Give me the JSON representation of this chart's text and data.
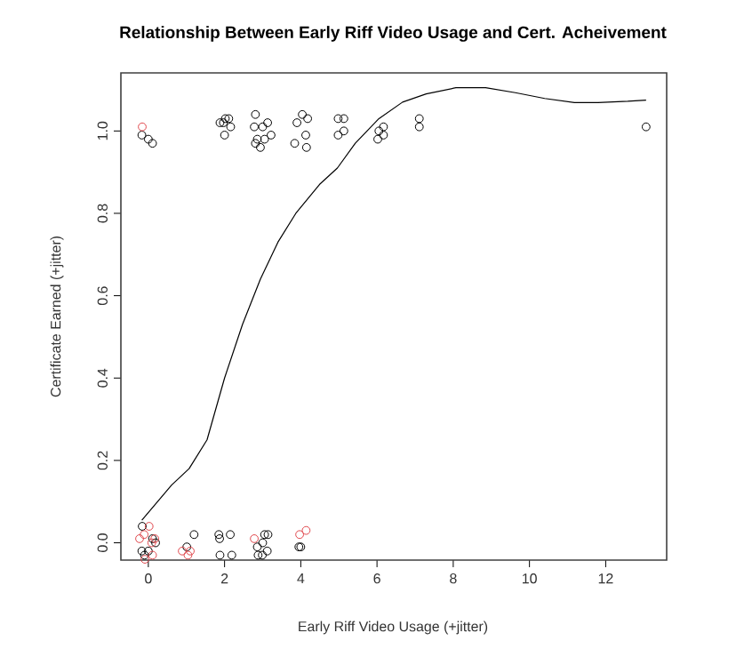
{
  "chart_data": {
    "type": "scatter",
    "title": "Relationship Between Early Riff Video Usage and Cert. Acheivement",
    "xlabel": "Early Riff Video Usage (+jitter)",
    "ylabel": "Certificate Earned (+jitter)",
    "xlim": [
      -0.72,
      13.6
    ],
    "ylim": [
      -0.042,
      1.141
    ],
    "xticks": [
      0,
      2,
      4,
      6,
      8,
      10,
      12
    ],
    "yticks": [
      {
        "value": 0,
        "label": "0.0"
      },
      {
        "value": 0.2,
        "label": "0.2"
      },
      {
        "value": 0.4,
        "label": "0.4"
      },
      {
        "value": 0.6,
        "label": "0.6"
      },
      {
        "value": 0.8,
        "label": "0.8"
      },
      {
        "value": 1,
        "label": "1.0"
      }
    ],
    "marker": "circle",
    "series": [
      {
        "color": "#000000",
        "x": [
          -0.17,
          0,
          0.11,
          1.88,
          2.02,
          2.11,
          1.97,
          2.16,
          2.0,
          2.81,
          2.78,
          3.0,
          3.13,
          3.22,
          2.81,
          2.94,
          3.05,
          2.86,
          3.84,
          3.9,
          4.04,
          4.18,
          4.13,
          4.15,
          4.98,
          5.13,
          4.98,
          5.13,
          6.02,
          6.05,
          6.17,
          6.17,
          7.11,
          7.11,
          13.06,
          -0.16,
          -0.17,
          0,
          0.11,
          0.19,
          -0.1,
          1.01,
          1.2,
          1.85,
          1.87,
          1.88,
          2.15,
          2.19,
          2.86,
          2.88,
          2.99,
          3.05,
          3.14,
          3.12,
          3.0,
          3.95,
          4.0
        ],
        "values": [
          0.99,
          0.98,
          0.97,
          1.02,
          1.03,
          1.03,
          1.02,
          1.01,
          0.99,
          1.04,
          1.01,
          1.01,
          1.02,
          0.99,
          0.97,
          0.96,
          0.98,
          0.98,
          0.97,
          1.02,
          1.04,
          1.03,
          0.99,
          0.96,
          1.03,
          1.03,
          0.99,
          1.0,
          0.98,
          1.0,
          1.01,
          0.99,
          1.03,
          1.01,
          1.01,
          0.04,
          -0.02,
          -0.02,
          0.01,
          0.0,
          -0.03,
          -0.01,
          0.02,
          0.02,
          0.01,
          -0.03,
          0.02,
          -0.03,
          -0.01,
          -0.03,
          -0.03,
          0.02,
          0.02,
          -0.02,
          0.0,
          -0.01,
          -0.01
        ]
      },
      {
        "color": "#e0474c",
        "x": [
          -0.16,
          0.02,
          -0.23,
          -0.11,
          0.09,
          0.17,
          -0.09,
          0.11,
          0.89,
          1.04,
          1.1,
          2.78,
          3.97,
          4.14
        ],
        "values": [
          1.01,
          0.04,
          0.01,
          0.02,
          0.0,
          0.01,
          -0.04,
          -0.03,
          -0.02,
          -0.03,
          -0.02,
          0.01,
          0.02,
          0.03
        ]
      },
      {
        "type": "line",
        "marker": "none",
        "line_style": "solid",
        "color": "#000000",
        "x": [
          -0.17,
          0.61,
          1.07,
          1.54,
          2.0,
          2.47,
          2.94,
          3.4,
          3.87,
          4.49,
          4.96,
          5.43,
          6.05,
          6.67,
          7.29,
          8.07,
          8.85,
          9.63,
          10.4,
          11.18,
          11.8,
          12.58,
          13.06
        ],
        "values": [
          0.055,
          0.14,
          0.18,
          0.25,
          0.4,
          0.53,
          0.64,
          0.73,
          0.8,
          0.87,
          0.91,
          0.97,
          1.03,
          1.07,
          1.09,
          1.105,
          1.105,
          1.093,
          1.079,
          1.069,
          1.069,
          1.072,
          1.075
        ]
      }
    ]
  }
}
